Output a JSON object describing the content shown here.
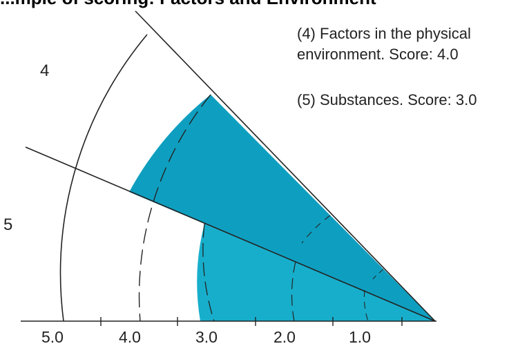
{
  "title": "...mple of scoring: Factors and Environment",
  "notes": [
    "(4) Factors in the physical environment.  Score: 4.0",
    "(5) Substances.  Score: 3.0"
  ],
  "note_lines": {
    "n4_a": "(4) Factors in the physical",
    "n4_b": "environment.  Score: 4.0",
    "n5": "(5) Substances.  Score: 3.0"
  },
  "sector_labels": {
    "s4": "4",
    "s5": "5"
  },
  "axis_labels": [
    "5.0",
    "4.0",
    "3.0",
    "2.0",
    "1.0"
  ],
  "scores": {
    "factor_4": 4.0,
    "factor_5": 3.0
  },
  "colors": {
    "fill": "#0e9fc0",
    "fill_light": "#17aecb",
    "line": "#222222"
  }
}
